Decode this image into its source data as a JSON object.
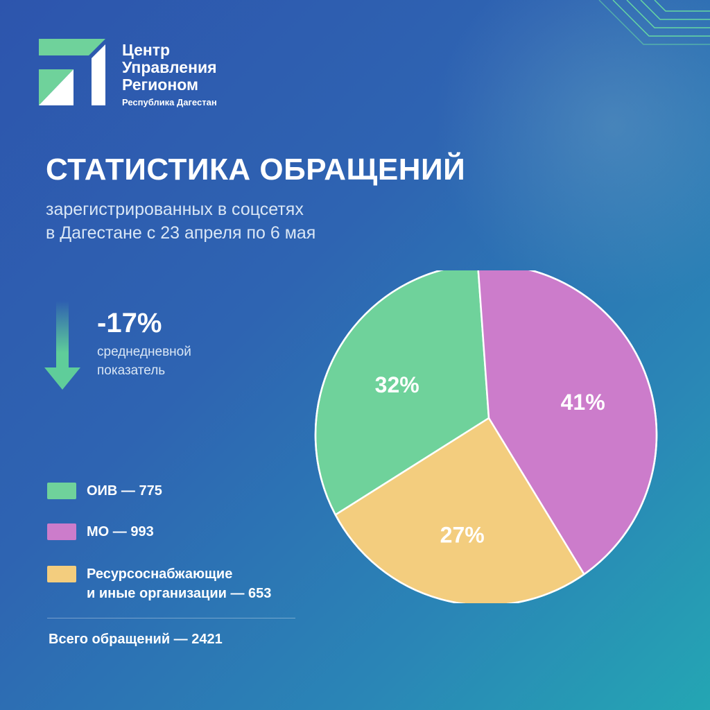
{
  "logo": {
    "line1": "Центр",
    "line2": "Управления",
    "line3": "Регионом",
    "subtitle": "Республика Дагестан"
  },
  "header": {
    "title": "СТАТИСТИКА ОБРАЩЕНИЙ",
    "subtitle_line1": "зарегистрированных в соцсетях",
    "subtitle_line2": "в Дагестане с 23 апреля по 6 мая"
  },
  "kpi": {
    "value": "-17%",
    "label_line1": "среднедневной",
    "label_line2": "показатель"
  },
  "legend": [
    {
      "text": "ОИВ — 775",
      "color": "#6fd29b"
    },
    {
      "text": "МО — 993",
      "color": "#cc7ccb"
    },
    {
      "text": "Ресурсоснабжающие",
      "text2": "и иные организации — 653",
      "color": "#f3cd7e"
    }
  ],
  "total": "Всего обращений — 2421",
  "colors": {
    "accent_green": "#6fd29b",
    "arrow": "#5fcd9a",
    "line_green": "#6de3a0"
  },
  "chart_data": {
    "type": "pie",
    "title": "",
    "slices": [
      {
        "label": "ОИВ",
        "value": 775,
        "percent_label": "32%",
        "color": "#6fd29b"
      },
      {
        "label": "МО",
        "value": 993,
        "percent_label": "41%",
        "color": "#cc7ccb"
      },
      {
        "label": "Ресурсоснабжающие и иные организации",
        "value": 653,
        "percent_label": "27%",
        "color": "#f3cd7e"
      }
    ],
    "total": 2421,
    "legend": "left"
  }
}
